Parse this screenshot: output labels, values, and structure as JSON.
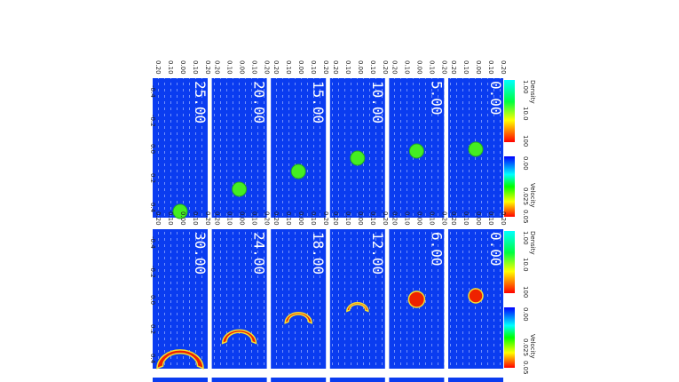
{
  "colorbar": {
    "density_title": "Density",
    "density_labels": [
      "1.00",
      "10.0",
      "100"
    ],
    "velocity_title": "Velocity",
    "velocity_labels": [
      "0.00",
      "0.025",
      "0.05"
    ]
  },
  "x_axis_labels": [
    "0.20",
    "0.10",
    "0.00",
    "0.10",
    "0.20"
  ],
  "y_axis_labels": [
    "-0.4",
    "-0.2",
    "0.0",
    "0.2",
    "0.4"
  ],
  "left_panels": [
    "0.00",
    "5.00",
    "10.00",
    "15.00",
    "20.00",
    "25.00"
  ],
  "right_panels": [
    "0.00",
    "6.00",
    "12.00",
    "18.00",
    "24.00",
    "30.00"
  ]
}
